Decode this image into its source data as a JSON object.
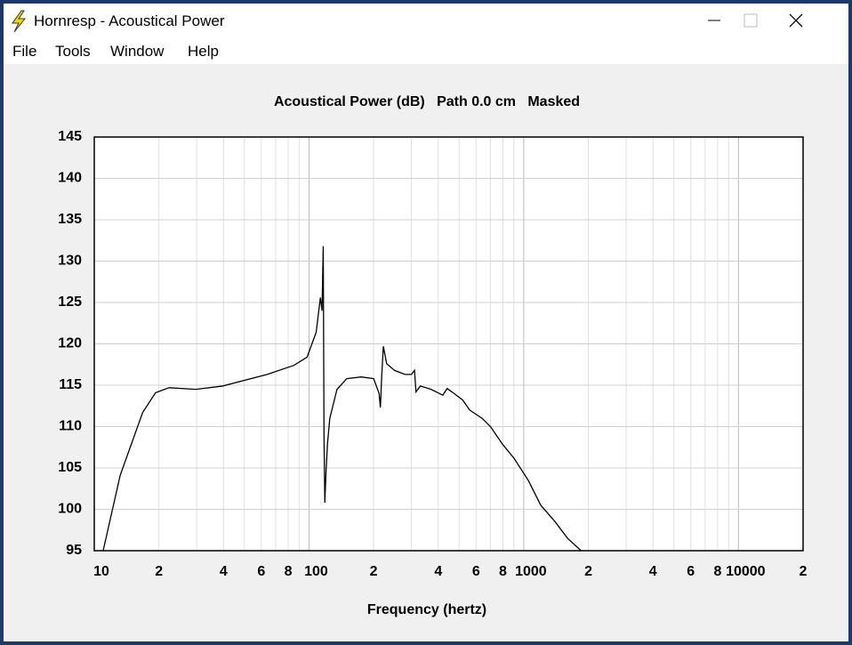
{
  "window": {
    "title": "Hornresp - Acoustical Power",
    "menu": [
      "File",
      "Tools",
      "Window",
      "Help"
    ]
  },
  "chart_data": {
    "type": "line",
    "title": "Acoustical Power (dB)   Path 0.0 cm   Masked",
    "x_label": "Frequency (hertz)",
    "xscale": "log",
    "grid": true,
    "xlim": [
      10,
      20000
    ],
    "ylim": [
      95,
      145
    ],
    "xticks": [
      10,
      {
        "value": 20,
        "label": "2"
      },
      {
        "value": 40,
        "label": "4"
      },
      {
        "value": 60,
        "label": "6"
      },
      {
        "value": 80,
        "label": "8"
      },
      100,
      {
        "value": 200,
        "label": "2"
      },
      {
        "value": 400,
        "label": "4"
      },
      {
        "value": 600,
        "label": "6"
      },
      {
        "value": 800,
        "label": "8"
      },
      1000,
      {
        "value": 2000,
        "label": "2"
      },
      {
        "value": 4000,
        "label": "4"
      },
      {
        "value": 6000,
        "label": "6"
      },
      {
        "value": 8000,
        "label": "8"
      },
      10000,
      {
        "value": 20000,
        "label": "2"
      }
    ],
    "xminor": [
      30,
      50,
      70,
      90,
      300,
      500,
      700,
      900,
      3000,
      5000,
      7000,
      9000
    ],
    "yticks": [
      95,
      100,
      105,
      110,
      115,
      120,
      125,
      130,
      135,
      140,
      145
    ],
    "series": [
      {
        "color": "#000000",
        "x": [
          11,
          13.2,
          16.8,
          19.3,
          22.3,
          29.7,
          39.6,
          63.8,
          85,
          98,
          108,
          113,
          115,
          116.5,
          117.5,
          118.5,
          120,
          122,
          125,
          135,
          150,
          175,
          200,
          212,
          215,
          218,
          222,
          230,
          250,
          280,
          300,
          310,
          315,
          330,
          370,
          420,
          440,
          480,
          520,
          560,
          640,
          700,
          800,
          900,
          1050,
          1200,
          1400,
          1600,
          1850
        ],
        "values": [
          95,
          104.1,
          111.7,
          114.1,
          114.7,
          114.5,
          114.9,
          116.3,
          117.4,
          118.4,
          121.4,
          125.6,
          124,
          131.8,
          108.5,
          100.8,
          104.5,
          108,
          111,
          114.5,
          115.8,
          116,
          115.8,
          114,
          112.3,
          116,
          119.7,
          117.6,
          116.8,
          116.3,
          116.3,
          116.8,
          114.2,
          114.9,
          114.5,
          113.8,
          114.6,
          113.9,
          113.2,
          112,
          111,
          110,
          107.8,
          106.2,
          103.5,
          100.5,
          98.5,
          96.5,
          95
        ]
      }
    ]
  }
}
